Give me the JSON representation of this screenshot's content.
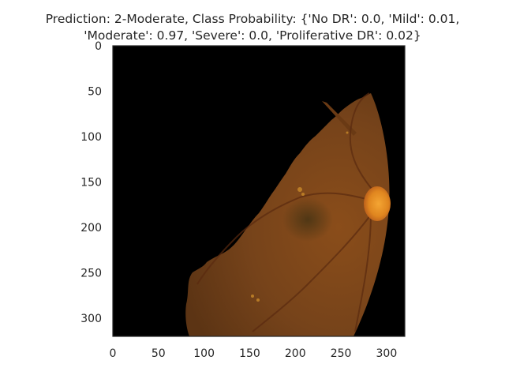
{
  "chart_data": {
    "type": "image",
    "title_lines": [
      "Prediction: 2-Moderate, Class Probability: {'No DR': 0.0, 'Mild': 0.01,",
      "'Moderate': 0.97, 'Severe': 0.0, 'Proliferative DR': 0.02}"
    ],
    "xlabel": "",
    "ylabel": "",
    "xlim": [
      0,
      320
    ],
    "ylim": [
      320,
      0
    ],
    "x_ticks": [
      0,
      50,
      100,
      150,
      200,
      250,
      300
    ],
    "y_ticks": [
      0,
      50,
      100,
      150,
      200,
      250,
      300
    ],
    "grid": false,
    "image_description_colors": {
      "background": "#000000",
      "retina_base": "#7a4417",
      "optic_disc": "#e0861f"
    }
  }
}
